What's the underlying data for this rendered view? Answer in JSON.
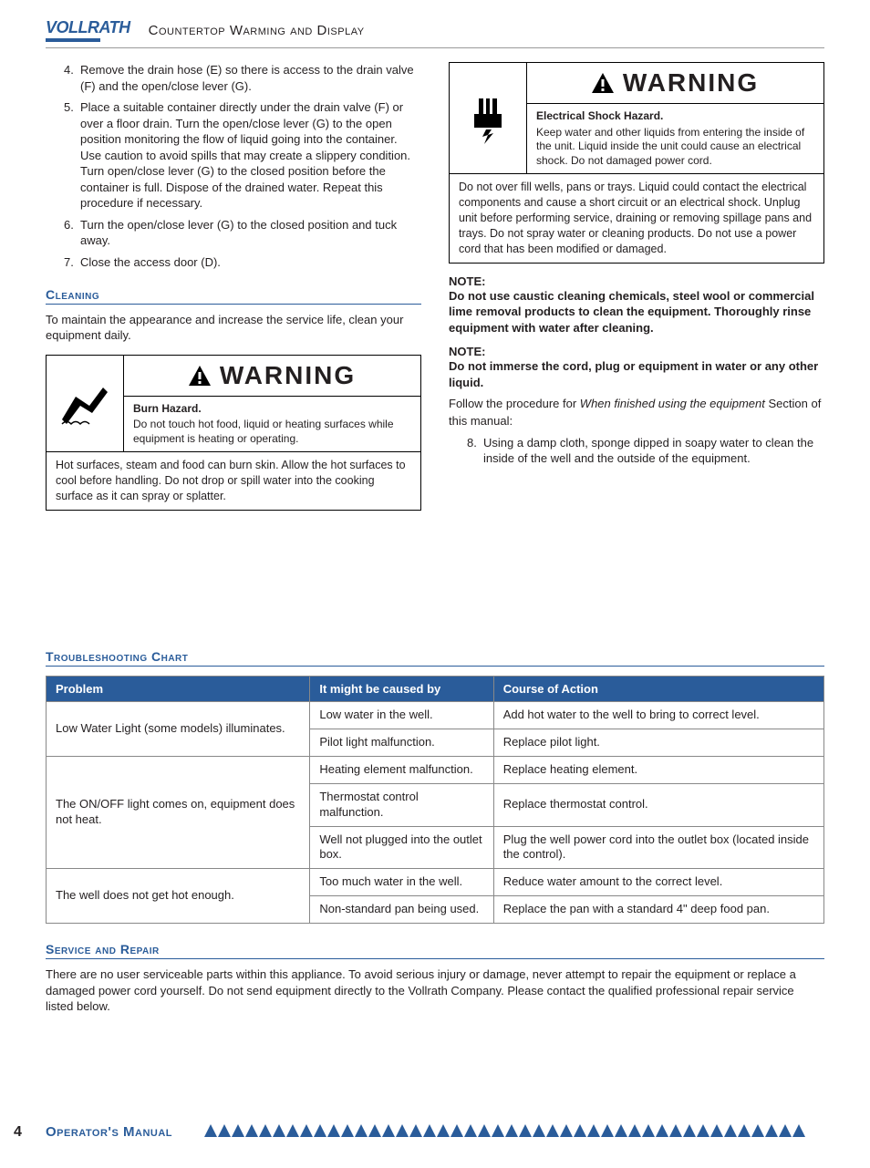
{
  "header": {
    "logo_text": "VOLLRATH",
    "title": "Countertop Warming and Display"
  },
  "left_steps": [
    {
      "n": "4.",
      "t": "Remove the drain hose (E) so there is access to the drain valve (F) and the open/close lever (G)."
    },
    {
      "n": "5.",
      "t": "Place a suitable container directly under the drain valve (F) or over a floor drain. Turn the open/close lever (G) to the open position monitoring the flow of liquid going into the container. Use caution to avoid spills that may create a slippery condition. Turn open/close lever (G) to the closed position before the container is full. Dispose of the drained water. Repeat this procedure if necessary."
    },
    {
      "n": "6.",
      "t": "Turn the open/close lever (G) to the closed position and tuck away."
    },
    {
      "n": "7.",
      "t": "Close the access door (D)."
    }
  ],
  "cleaning": {
    "heading": "Cleaning",
    "text": "To maintain the appearance and increase the service life, clean your equipment daily."
  },
  "warning1": {
    "title": "WARNING",
    "sub_title": "Burn Hazard.",
    "sub_text": "Do not touch hot food, liquid or heating surfaces while equipment is heating or operating.",
    "body": "Hot surfaces, steam and food can burn skin. Allow the hot surfaces to cool before handling. Do not drop or spill water into the cooking surface as it can spray or splatter."
  },
  "warning2": {
    "title": "WARNING",
    "sub_title": "Electrical Shock Hazard.",
    "sub_text": "Keep water and other liquids from entering the inside of the unit. Liquid inside the unit could cause an electrical shock. Do not damaged power cord.",
    "body": "Do not over fill wells, pans or trays. Liquid could contact the electrical components and cause a short circuit or an electrical shock. Unplug unit before performing service, draining or removing spillage pans and trays. Do not spray water or cleaning products. Do not use a power cord that has been modified or damaged."
  },
  "notes": {
    "label": "NOTE:",
    "note1": "Do not use caustic cleaning chemicals, steel wool or commercial lime removal products to clean the equipment. Thoroughly rinse equipment with water after cleaning.",
    "note2": "Do not immerse the cord, plug or equipment in water or any other liquid.",
    "follow_pre": "Follow the procedure for ",
    "follow_ital": "When finished using the equipment",
    "follow_post": " Section of this manual:"
  },
  "right_steps": [
    {
      "n": "8.",
      "t": "Using a damp cloth, sponge dipped in soapy water to clean the inside of the well and the outside of the equipment."
    }
  ],
  "troubleshooting": {
    "heading": "Troubleshooting Chart",
    "columns": [
      "Problem",
      "It might be caused by",
      "Course of Action"
    ],
    "rows": [
      {
        "problem": "Low Water Light (some models) illuminates.",
        "rowspan": 2,
        "cause": "Low water in the well.",
        "action": "Add hot water to the well to bring to correct level."
      },
      {
        "problem": "",
        "rowspan": 0,
        "cause": "Pilot light malfunction.",
        "action": "Replace pilot light."
      },
      {
        "problem": "The ON/OFF light comes on, equipment does not heat.",
        "rowspan": 3,
        "cause": "Heating element malfunction.",
        "action": "Replace heating element."
      },
      {
        "problem": "",
        "rowspan": 0,
        "cause": "Thermostat control malfunction.",
        "action": "Replace thermostat control."
      },
      {
        "problem": "",
        "rowspan": 0,
        "cause": "Well not plugged into the outlet box.",
        "action": "Plug the well power cord into the outlet box (located inside the control)."
      },
      {
        "problem": "The well does not get hot enough.",
        "rowspan": 2,
        "cause": "Too much water in the well.",
        "action": "Reduce water amount to the correct level."
      },
      {
        "problem": "",
        "rowspan": 0,
        "cause": "Non-standard pan being used.",
        "action": "Replace the pan with a standard 4\" deep food pan."
      }
    ]
  },
  "service": {
    "heading": "Service and Repair",
    "text": "There are no user serviceable parts within this appliance. To avoid serious injury or damage, never attempt to repair the equipment or replace a damaged power cord yourself. Do not send equipment directly to the Vollrath Company. Please contact the qualified professional repair service listed below."
  },
  "footer": {
    "page": "4",
    "title": "Operator's Manual",
    "triangle_count": 44
  },
  "colors": {
    "brand": "#2a5c9a",
    "text": "#231f20",
    "border": "#888888"
  }
}
